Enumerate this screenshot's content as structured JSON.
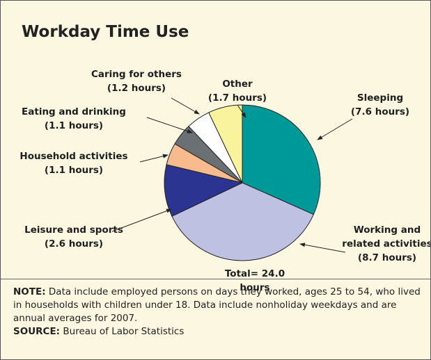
{
  "chart_data": {
    "type": "pie",
    "title": "Workday Time Use",
    "categories": [
      "Sleeping",
      "Working and related activities",
      "Leisure and sports",
      "Household activities",
      "Eating and drinking",
      "Caring for others",
      "Other"
    ],
    "values": [
      7.6,
      8.7,
      2.6,
      1.1,
      1.1,
      1.2,
      1.7
    ],
    "value_labels": [
      "(7.6 hours)",
      "(8.7 hours)",
      "(2.6 hours)",
      "(1.1 hours)",
      "(1.1 hours)",
      "(1.2 hours)",
      "(1.7 hours)"
    ],
    "colors": [
      "#00999a",
      "#bfc1e2",
      "#2b3591",
      "#f7bb8e",
      "#6b7075",
      "#ffffff",
      "#f8f39c"
    ],
    "annotations": [
      "Total= 24.0 hours"
    ],
    "note_label": "NOTE:",
    "note": "Data include employed persons on days they worked, ages 25 to 54, who lived in households with children under 18. Data include nonholiday weekdays and are annual averages for 2007.",
    "source_label": "SOURCE:",
    "source": "Bureau of Labor Statistics"
  }
}
